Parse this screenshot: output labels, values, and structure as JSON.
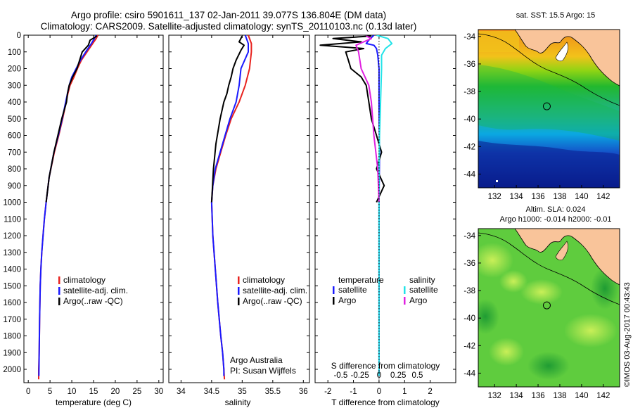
{
  "header": {
    "line1": "Argo profile: csiro 5901611_137 02-Jan-2011 39.077S 136.804E (DM data)",
    "line2": "Climatology: CARS2009. Satellite-adjusted climatology: synTS_20110103.nc (0.13d later)"
  },
  "colors": {
    "climatology": "#e8231f",
    "satellite": "#1a1aff",
    "argo": "#000000",
    "satellite_salinity": "#22e3e8",
    "argo_salinity": "#e020e0"
  },
  "chart_data": [
    {
      "type": "line",
      "name": "temperature-profile",
      "xlabel": "temperature (deg C)",
      "ylabel": "",
      "xlim": [
        -1,
        31
      ],
      "ylim": [
        2080,
        0
      ],
      "xticks": [
        0,
        5,
        10,
        15,
        20,
        25,
        30
      ],
      "yticks": [
        0,
        100,
        200,
        300,
        400,
        500,
        600,
        700,
        800,
        900,
        1000,
        1100,
        1200,
        1300,
        1400,
        1500,
        1600,
        1700,
        1800,
        1900,
        2000
      ],
      "legend": [
        "climatology",
        "satellite-adj. clim.",
        "Argo(..raw -QC)"
      ],
      "legend_position": "middle",
      "series": [
        {
          "name": "climatology",
          "color": "#e8231f",
          "x": [
            16.0,
            15.6,
            14.8,
            13.5,
            12.2,
            11.3,
            10.5,
            9.6,
            9.1,
            8.7,
            7.9,
            7.0,
            6.0,
            4.8,
            4.1,
            3.7,
            3.4,
            3.1,
            2.9,
            2.75,
            2.6,
            2.5,
            2.4,
            2.4
          ],
          "y": [
            0,
            20,
            50,
            100,
            150,
            200,
            250,
            300,
            350,
            400,
            500,
            600,
            700,
            850,
            1000,
            1100,
            1200,
            1300,
            1400,
            1500,
            1700,
            1900,
            2000,
            2060
          ]
        },
        {
          "name": "satellite-adj. clim.",
          "color": "#1a1aff",
          "x": [
            15.6,
            15.2,
            14.5,
            13.2,
            12.0,
            11.0,
            10.0,
            9.4,
            9.0,
            8.6,
            7.8,
            6.9,
            5.9,
            4.8,
            4.1,
            3.7,
            3.4,
            3.1,
            2.9,
            2.75,
            2.6,
            2.5,
            2.45
          ],
          "y": [
            0,
            20,
            50,
            100,
            150,
            200,
            250,
            300,
            350,
            400,
            500,
            600,
            700,
            850,
            1000,
            1100,
            1200,
            1300,
            1400,
            1500,
            1700,
            1900,
            2040
          ]
        },
        {
          "name": "Argo(..raw -QC)",
          "color": "#000000",
          "x": [
            15.8,
            14.2,
            13.8,
            12.4,
            11.8,
            11.2,
            10.2,
            9.4,
            9.0,
            8.8,
            7.7,
            6.8,
            5.9,
            4.8,
            4.1
          ],
          "y": [
            5,
            30,
            60,
            100,
            150,
            200,
            250,
            300,
            350,
            400,
            500,
            600,
            700,
            850,
            1000
          ]
        }
      ]
    },
    {
      "type": "line",
      "name": "salinity-profile",
      "xlabel": "salinity",
      "ylabel": "",
      "xlim": [
        33.8,
        36.1
      ],
      "ylim": [
        2080,
        0
      ],
      "xticks": [
        34,
        34.5,
        35,
        35.5,
        36
      ],
      "legend": [
        "climatology",
        "satellite-adj. clim.",
        "Argo(..raw -QC)"
      ],
      "legend_position": "middle",
      "annotations": [
        "Argo Australia",
        "PI: Susan Wijffels"
      ],
      "series": [
        {
          "name": "climatology",
          "color": "#e8231f",
          "x": [
            35.1,
            35.15,
            35.15,
            35.12,
            35.05,
            34.95,
            34.82,
            34.73,
            34.65,
            34.57,
            34.52,
            34.5,
            34.52,
            34.56,
            34.6,
            34.65,
            34.68,
            34.7,
            34.71
          ],
          "y": [
            0,
            50,
            100,
            200,
            300,
            400,
            500,
            600,
            700,
            800,
            900,
            1000,
            1200,
            1400,
            1600,
            1800,
            1900,
            2000,
            2060
          ]
        },
        {
          "name": "satellite-adj. clim.",
          "color": "#1a1aff",
          "x": [
            35.05,
            35.1,
            35.1,
            34.98,
            34.95,
            34.9,
            34.8,
            34.72,
            34.64,
            34.56,
            34.52,
            34.5,
            34.52,
            34.56,
            34.6,
            34.65,
            34.68,
            34.7,
            34.7
          ],
          "y": [
            0,
            50,
            100,
            200,
            300,
            400,
            500,
            600,
            700,
            800,
            900,
            1000,
            1200,
            1400,
            1600,
            1800,
            1900,
            2000,
            2040
          ]
        },
        {
          "name": "Argo(..raw -QC)",
          "color": "#000000",
          "x": [
            35.0,
            34.95,
            35.03,
            34.98,
            34.9,
            34.85,
            34.82,
            34.78,
            34.75,
            34.7,
            34.64,
            34.57,
            34.53,
            34.5
          ],
          "y": [
            5,
            40,
            60,
            90,
            150,
            200,
            250,
            300,
            350,
            400,
            500,
            650,
            800,
            1000
          ]
        }
      ]
    },
    {
      "type": "line",
      "name": "difference-profile",
      "xlabel": "T difference from climatology",
      "xlabel_top": "S difference from climatology",
      "ylabel": "",
      "xlim": [
        -2.5,
        3.0
      ],
      "ylim": [
        2080,
        0
      ],
      "xticks": [
        -2,
        -1,
        0,
        1,
        2
      ],
      "xticks_top": [
        "-0.5",
        "-0.25",
        "0",
        "0.25",
        "0.5"
      ],
      "legend_titles": [
        "temperature",
        "salinity"
      ],
      "legend": [
        "satellite",
        "Argo",
        "satellite",
        "Argo"
      ],
      "legend_position": "middle",
      "series": [
        {
          "name": "temperature satellite",
          "color": "#1a1aff",
          "x": [
            -0.2,
            -0.4,
            -0.5,
            -0.2,
            -0.1,
            -0.05,
            0,
            0,
            0.02,
            0.0,
            0.0,
            0.0
          ],
          "y": [
            0,
            30,
            50,
            60,
            80,
            120,
            200,
            400,
            700,
            1000,
            1500,
            2040
          ]
        },
        {
          "name": "temperature Argo",
          "color": "#000000",
          "x": [
            -0.3,
            -1.8,
            -0.7,
            -2.3,
            -0.6,
            -1.3,
            -1.2,
            -1.1,
            -0.7,
            -0.5,
            -0.4,
            -0.3,
            -0.1,
            0.1,
            -0.1,
            0.2,
            -0.1
          ],
          "y": [
            5,
            20,
            40,
            60,
            80,
            100,
            150,
            200,
            250,
            300,
            400,
            500,
            600,
            700,
            800,
            900,
            1000
          ]
        },
        {
          "name": "salinity satellite",
          "color": "#22e3e8",
          "x": [
            -0.1,
            0.35,
            0.5,
            0.25,
            0.1,
            0.1,
            0.06,
            0.02,
            0,
            0,
            0,
            0
          ],
          "y": [
            0,
            20,
            50,
            80,
            120,
            200,
            400,
            600,
            800,
            1000,
            1500,
            2040
          ]
        },
        {
          "name": "salinity Argo",
          "color": "#e020e0",
          "x": [
            -0.5,
            -0.3,
            -0.6,
            -0.9,
            -0.8,
            -0.7,
            -0.4,
            -0.3,
            -0.25,
            -0.2,
            -0.05,
            0.0
          ],
          "y": [
            5,
            20,
            40,
            60,
            100,
            200,
            300,
            400,
            500,
            600,
            800,
            1000
          ]
        }
      ]
    },
    {
      "type": "heatmap",
      "name": "sst-map",
      "title": "sat. SST: 15.5 Argo: 15",
      "xlim": [
        130.5,
        143.5
      ],
      "ylim": [
        -45,
        -33.5
      ],
      "xticks": [
        132,
        134,
        136,
        138,
        140,
        142
      ],
      "yticks": [
        -34,
        -36,
        -38,
        -40,
        -42,
        -44
      ],
      "marker": {
        "lon": 136.804,
        "lat": -39.077
      }
    },
    {
      "type": "heatmap",
      "name": "sla-map",
      "title": "Altim. SLA: 0.024",
      "subtitle": "Argo h1000: -0.014 h2000: -0.01",
      "xlim": [
        130.5,
        143.5
      ],
      "ylim": [
        -45,
        -33.5
      ],
      "xticks": [
        132,
        134,
        136,
        138,
        140,
        142
      ],
      "yticks": [
        -34,
        -36,
        -38,
        -40,
        -42,
        -44
      ],
      "marker": {
        "lon": 136.804,
        "lat": -39.077
      }
    }
  ],
  "footer": {
    "stamp": "©IMOS 03-Aug-2017 00:43:43"
  }
}
